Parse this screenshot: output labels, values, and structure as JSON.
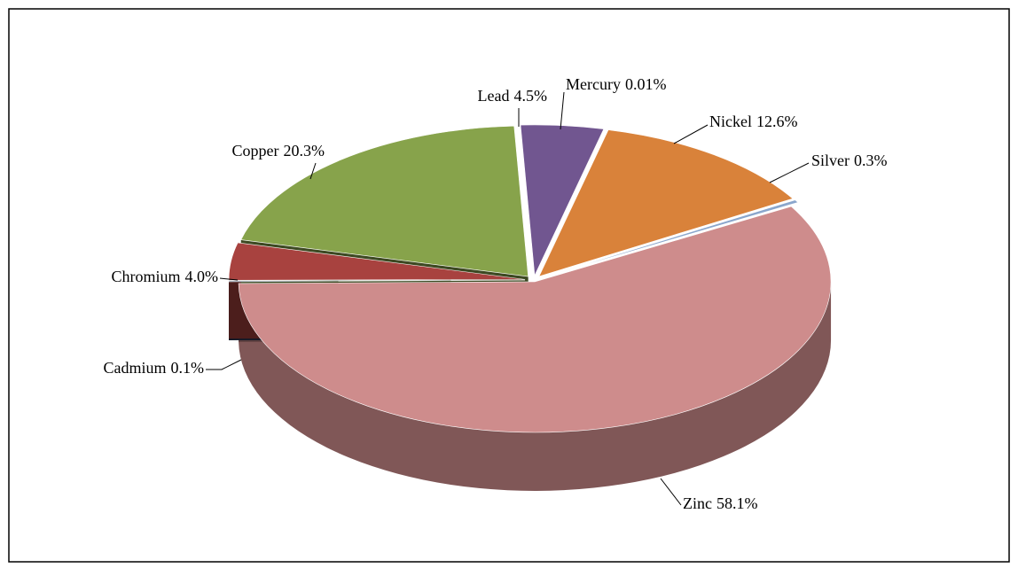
{
  "chart_data": {
    "type": "pie",
    "categories": [
      "Zinc",
      "Cadmium",
      "Chromium",
      "Copper",
      "Lead",
      "Mercury",
      "Nickel",
      "Silver"
    ],
    "values": [
      58.1,
      0.1,
      4.0,
      20.3,
      4.5,
      0.01,
      12.6,
      0.3
    ],
    "value_labels": [
      "58.1%",
      "0.1%",
      "4.0%",
      "20.3%",
      "4.5%",
      "0.01%",
      "12.6%",
      "0.3%"
    ],
    "colors": [
      "#ce8c8c",
      "#1f3656",
      "#a8423f",
      "#87a34b",
      "#715690",
      "#3b8fa9",
      "#d9823a",
      "#8aa6cc"
    ]
  }
}
